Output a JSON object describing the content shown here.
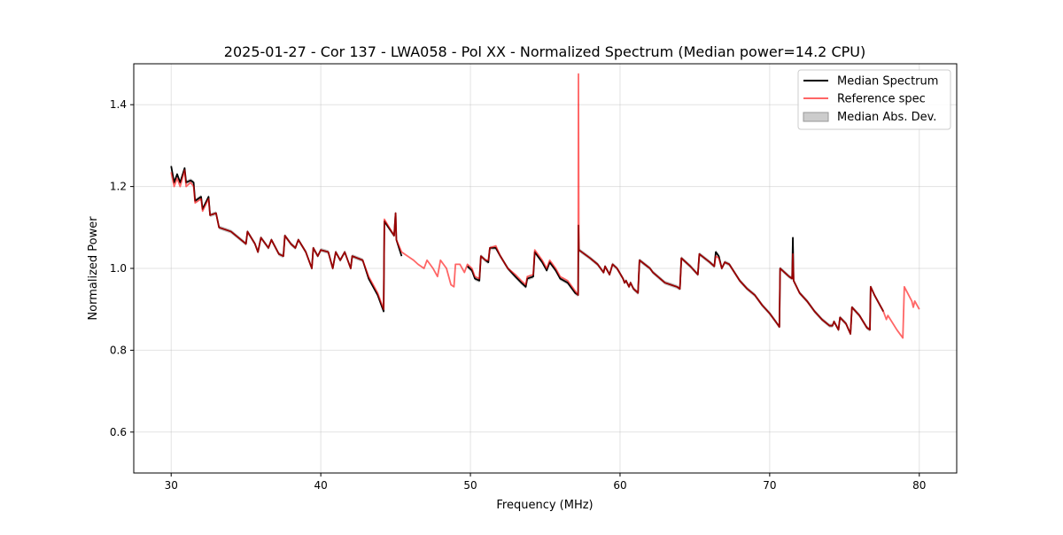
{
  "chart_data": {
    "type": "line",
    "title": "2025-01-27 - Cor 137 - LWA058 - Pol XX - Normalized Spectrum (Median power=14.2 CPU)",
    "xlabel": "Frequency (MHz)",
    "ylabel": "Normalized Power",
    "xlim": [
      27.5,
      82.5
    ],
    "ylim": [
      0.5,
      1.5
    ],
    "xticks": [
      30,
      40,
      50,
      60,
      70,
      80
    ],
    "xtick_labels": [
      "30",
      "40",
      "50",
      "60",
      "70",
      "80"
    ],
    "yticks": [
      0.6,
      0.8,
      1.0,
      1.2,
      1.4
    ],
    "ytick_labels": [
      "0.6",
      "0.8",
      "1.0",
      "1.2",
      "1.4"
    ],
    "grid": true,
    "legend_position": "top-right",
    "legend": [
      "Median Spectrum",
      "Reference spec",
      "Median Abs. Dev."
    ],
    "colors": {
      "median": "#000000",
      "reference": "#ff0000",
      "mad": "#999999"
    },
    "mad_halfwidth": 0.005,
    "x": [
      30.0,
      30.2,
      30.4,
      30.6,
      30.9,
      31.0,
      31.3,
      31.5,
      31.6,
      32.0,
      32.1,
      32.5,
      32.6,
      33.0,
      33.2,
      34.0,
      35.0,
      35.1,
      35.6,
      35.8,
      36.0,
      36.5,
      36.7,
      37.2,
      37.5,
      37.6,
      38.0,
      38.3,
      38.5,
      39.0,
      39.4,
      39.5,
      39.8,
      40.0,
      40.5,
      40.8,
      41.0,
      41.3,
      41.6,
      42.0,
      42.1,
      42.8,
      43.2,
      43.8,
      44.2,
      44.25,
      44.9,
      45.0,
      45.05,
      45.4,
      45.8,
      46.2,
      46.5,
      46.9,
      47.1,
      47.5,
      47.8,
      48.0,
      48.4,
      48.7,
      48.9,
      49.0,
      49.3,
      49.6,
      49.8,
      50.1,
      50.3,
      50.6,
      50.7,
      51.0,
      51.2,
      51.3,
      51.7,
      52.0,
      52.5,
      53.0,
      53.4,
      53.7,
      53.8,
      54.2,
      54.3,
      54.8,
      55.1,
      55.3,
      55.7,
      56.0,
      56.5,
      57.0,
      57.2,
      57.22,
      57.25,
      58.0,
      58.5,
      58.9,
      59.0,
      59.3,
      59.5,
      59.8,
      60.2,
      60.3,
      60.4,
      60.6,
      60.7,
      60.9,
      61.2,
      61.3,
      62.0,
      62.2,
      63.0,
      63.4,
      63.8,
      64.0,
      64.1,
      64.7,
      65.2,
      65.3,
      66.0,
      66.3,
      66.4,
      66.6,
      66.8,
      67.0,
      67.3,
      68.0,
      68.5,
      69.0,
      69.5,
      70.0,
      70.5,
      70.65,
      70.7,
      71.3,
      71.5,
      71.55,
      71.6,
      71.8,
      72.0,
      72.5,
      73.0,
      73.5,
      74.0,
      74.2,
      74.3,
      74.6,
      74.7,
      75.1,
      75.4,
      75.5,
      76.0,
      76.5,
      76.7,
      76.75,
      77.0,
      77.6,
      77.8,
      77.9,
      78.5,
      78.9,
      79.0,
      79.5,
      79.6,
      79.7,
      80.0
    ],
    "series": [
      {
        "name": "Median Spectrum",
        "values": [
          1.25,
          1.21,
          1.23,
          1.21,
          1.245,
          1.21,
          1.215,
          1.21,
          1.165,
          1.175,
          1.145,
          1.175,
          1.13,
          1.135,
          1.1,
          1.09,
          1.06,
          1.09,
          1.06,
          1.04,
          1.075,
          1.05,
          1.07,
          1.035,
          1.03,
          1.08,
          1.06,
          1.05,
          1.07,
          1.04,
          1.0,
          1.05,
          1.03,
          1.045,
          1.04,
          1.0,
          1.04,
          1.02,
          1.04,
          1.0,
          1.03,
          1.02,
          0.975,
          0.935,
          0.895,
          1.115,
          1.08,
          1.135,
          1.07,
          1.03,
          null,
          null,
          null,
          null,
          null,
          null,
          null,
          null,
          null,
          null,
          null,
          null,
          null,
          null,
          1.005,
          0.995,
          0.975,
          0.97,
          1.03,
          1.02,
          1.015,
          1.05,
          1.05,
          1.03,
          1.0,
          0.98,
          0.965,
          0.955,
          0.975,
          0.98,
          1.04,
          1.015,
          0.995,
          1.015,
          0.995,
          0.975,
          0.965,
          0.94,
          0.935,
          1.105,
          1.045,
          1.025,
          1.01,
          0.99,
          1.005,
          0.985,
          1.01,
          1.0,
          0.975,
          0.965,
          0.97,
          0.955,
          0.965,
          0.95,
          0.94,
          1.02,
          1.0,
          0.99,
          0.965,
          0.96,
          0.955,
          0.95,
          1.025,
          1.005,
          0.985,
          1.035,
          1.015,
          1.005,
          1.04,
          1.03,
          1.0,
          1.015,
          1.01,
          0.97,
          0.95,
          0.935,
          0.91,
          0.89,
          0.865,
          0.857,
          1.0,
          0.98,
          0.975,
          1.075,
          0.97,
          0.955,
          0.94,
          0.92,
          0.895,
          0.875,
          0.86,
          0.86,
          0.87,
          0.85,
          0.88,
          0.865,
          0.84,
          0.905,
          0.885,
          0.855,
          0.85,
          0.955,
          0.935,
          0.895,
          null,
          null,
          null,
          null,
          null,
          null,
          null,
          null,
          null
        ]
      },
      {
        "name": "Reference spec",
        "values": [
          1.235,
          1.2,
          1.22,
          1.2,
          1.24,
          1.2,
          1.21,
          1.2,
          1.16,
          1.17,
          1.14,
          1.17,
          1.13,
          1.135,
          1.1,
          1.09,
          1.06,
          1.09,
          1.06,
          1.04,
          1.075,
          1.05,
          1.07,
          1.035,
          1.03,
          1.08,
          1.06,
          1.05,
          1.07,
          1.04,
          1.0,
          1.05,
          1.03,
          1.045,
          1.04,
          1.0,
          1.04,
          1.02,
          1.04,
          1.0,
          1.03,
          1.02,
          0.98,
          0.94,
          0.9,
          1.12,
          1.08,
          1.135,
          1.07,
          1.04,
          1.03,
          1.02,
          1.01,
          1.0,
          1.02,
          1.0,
          0.98,
          1.02,
          1.0,
          0.96,
          0.955,
          1.01,
          1.01,
          0.99,
          1.01,
          1.0,
          0.98,
          0.975,
          1.03,
          1.02,
          1.02,
          1.05,
          1.055,
          1.03,
          1.0,
          0.985,
          0.97,
          0.96,
          0.98,
          0.985,
          1.045,
          1.02,
          1.0,
          1.02,
          1.0,
          0.98,
          0.97,
          0.945,
          0.935,
          1.475,
          1.045,
          1.025,
          1.01,
          0.99,
          1.005,
          0.985,
          1.01,
          1.0,
          0.975,
          0.965,
          0.97,
          0.955,
          0.965,
          0.95,
          0.94,
          1.02,
          1.0,
          0.99,
          0.965,
          0.96,
          0.955,
          0.95,
          1.025,
          1.005,
          0.985,
          1.035,
          1.015,
          1.005,
          1.03,
          1.025,
          1.0,
          1.015,
          1.01,
          0.97,
          0.95,
          0.935,
          0.91,
          0.89,
          0.865,
          0.857,
          1.0,
          0.98,
          0.975,
          1.035,
          0.97,
          0.955,
          0.94,
          0.92,
          0.895,
          0.875,
          0.86,
          0.86,
          0.87,
          0.85,
          0.88,
          0.865,
          0.84,
          0.905,
          0.885,
          0.855,
          0.85,
          0.955,
          0.935,
          0.895,
          0.875,
          0.885,
          0.85,
          0.83,
          0.955,
          0.92,
          0.905,
          0.92,
          0.9
        ]
      }
    ]
  }
}
